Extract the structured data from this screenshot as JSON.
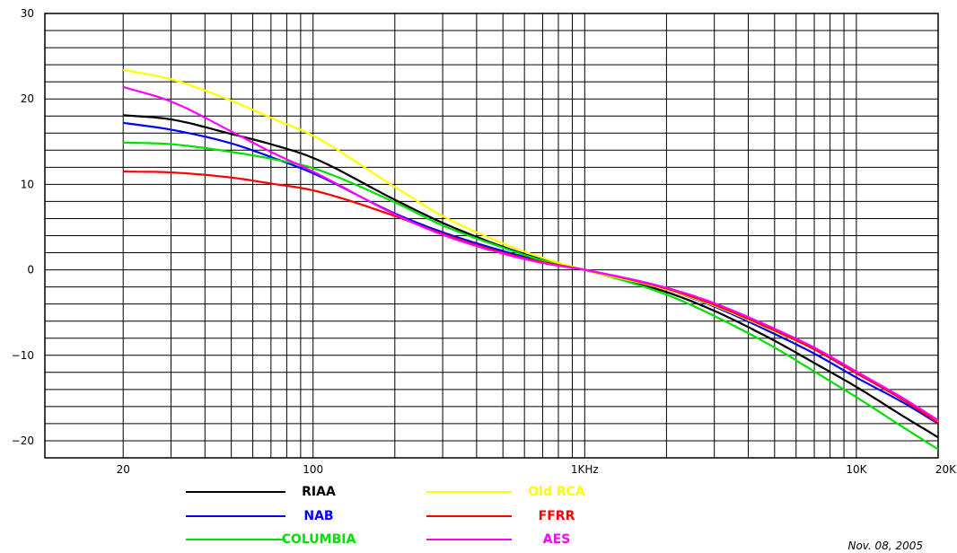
{
  "chart_data": {
    "type": "line",
    "title": "",
    "xlabel": "",
    "ylabel": "",
    "x_scale": "log",
    "xlim": [
      20,
      20000
    ],
    "ylim": [
      -22,
      30
    ],
    "grid": true,
    "x_tick_labels": [
      {
        "value": 20,
        "label": "20"
      },
      {
        "value": 100,
        "label": "100"
      },
      {
        "value": 1000,
        "label": "1KHz"
      },
      {
        "value": 10000,
        "label": "10K"
      },
      {
        "value": 20000,
        "label": "20K"
      }
    ],
    "y_tick_labels": [
      {
        "value": 30,
        "label": "30"
      },
      {
        "value": 20,
        "label": "20"
      },
      {
        "value": 10,
        "label": "10"
      },
      {
        "value": 0,
        "label": "0"
      },
      {
        "value": -10,
        "label": "−10"
      },
      {
        "value": -20,
        "label": "−20"
      }
    ],
    "legend_position": "bottom",
    "x": [
      20,
      30,
      50,
      70,
      100,
      200,
      300,
      500,
      700,
      1000,
      2000,
      3000,
      5000,
      7000,
      10000,
      15000,
      20000
    ],
    "series": [
      {
        "name": "RIAA",
        "color": "#000000",
        "values": [
          18.1,
          17.6,
          15.9,
          14.7,
          13.1,
          8.2,
          5.5,
          2.7,
          1.2,
          0,
          -2.6,
          -4.8,
          -8.3,
          -10.9,
          -13.7,
          -17.2,
          -19.6
        ]
      },
      {
        "name": "NAB",
        "color": "#0000ff",
        "values": [
          17.2,
          16.4,
          14.8,
          13.2,
          11.3,
          6.6,
          4.4,
          2.2,
          1.0,
          0,
          -2.3,
          -4.3,
          -7.5,
          -9.8,
          -12.6,
          -15.6,
          -18.0
        ]
      },
      {
        "name": "COLUMBIA",
        "color": "#00e000",
        "values": [
          14.9,
          14.7,
          13.8,
          13.0,
          11.9,
          7.9,
          5.2,
          2.6,
          1.1,
          0,
          -2.9,
          -5.4,
          -9.1,
          -11.9,
          -14.9,
          -18.5,
          -21.0
        ]
      },
      {
        "name": "Old RCA",
        "color": "#ffff00",
        "values": [
          23.4,
          22.3,
          19.8,
          17.8,
          15.7,
          9.7,
          6.3,
          3.1,
          1.4,
          0,
          -2.3,
          -4.2,
          -7.2,
          -9.3,
          -12.0,
          -15.2,
          -17.8
        ]
      },
      {
        "name": "FFRR",
        "color": "#ff0000",
        "values": [
          11.5,
          11.4,
          10.8,
          10.1,
          9.3,
          6.3,
          4.2,
          2.0,
          0.9,
          0,
          -2.2,
          -4.1,
          -7.1,
          -9.3,
          -12.1,
          -15.3,
          -17.9
        ]
      },
      {
        "name": "AES",
        "color": "#ff00ff",
        "values": [
          21.4,
          19.7,
          16.2,
          13.8,
          11.5,
          6.5,
          4.1,
          1.9,
          0.8,
          0,
          -2.1,
          -3.9,
          -6.9,
          -9.1,
          -11.9,
          -15.1,
          -17.6
        ]
      }
    ],
    "annotations": [
      "Nov. 08, 2005"
    ]
  },
  "legend": {
    "items": [
      {
        "label": "RIAA",
        "color": "#000000",
        "text_color": "#000000"
      },
      {
        "label": "NAB",
        "color": "#0000ff",
        "text_color": "#0000ff"
      },
      {
        "label": "COLUMBIA",
        "color": "#00e000",
        "text_color": "#00e000"
      },
      {
        "label": "Old RCA",
        "color": "#ffff00",
        "text_color": "#ffff00"
      },
      {
        "label": "FFRR",
        "color": "#ff0000",
        "text_color": "#ff0000"
      },
      {
        "label": "AES",
        "color": "#ff00ff",
        "text_color": "#ff00ff"
      }
    ]
  },
  "date_stamp": "Nov. 08, 2005"
}
